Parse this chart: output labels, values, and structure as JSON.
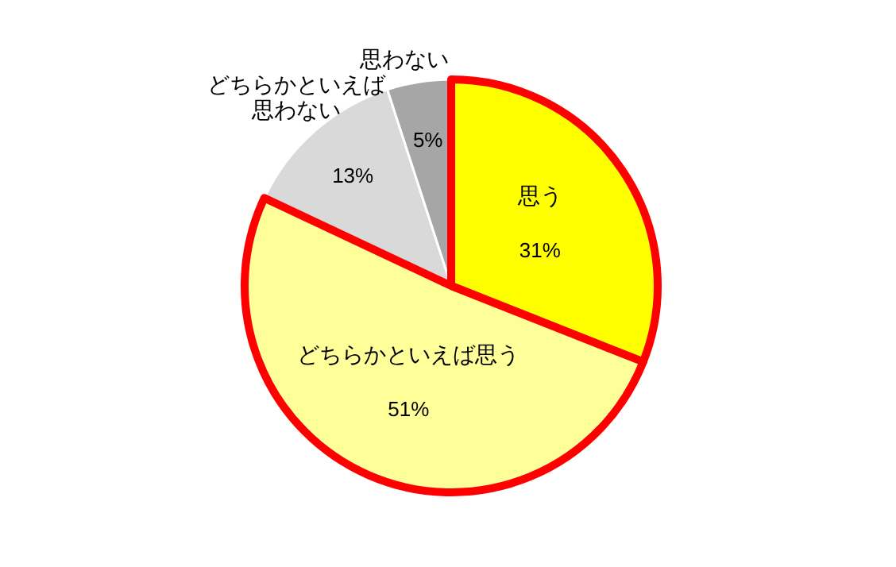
{
  "chart_data": {
    "type": "pie",
    "categories": [
      "思う",
      "どちらかといえば思う",
      "どちらかといえば思わない",
      "思わない"
    ],
    "values": [
      31,
      51,
      13,
      5
    ],
    "colors": [
      "#ffff00",
      "#ffff99",
      "#d9d9d9",
      "#a6a6a6"
    ],
    "value_labels": [
      "31%",
      "51%",
      "13%",
      "5%"
    ]
  }
}
